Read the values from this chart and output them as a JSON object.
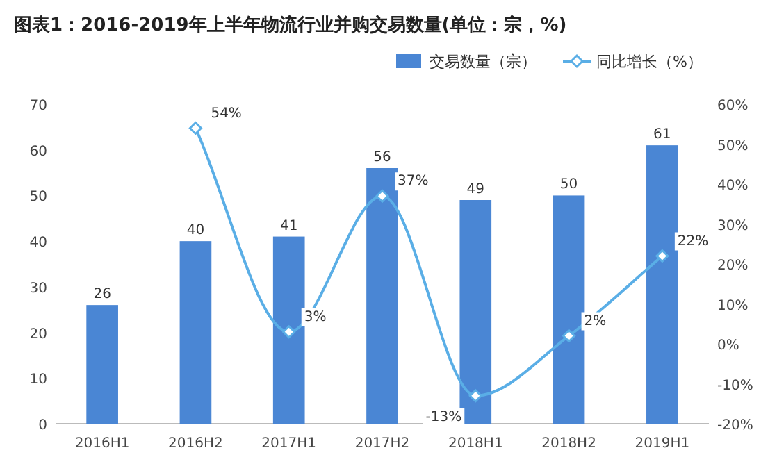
{
  "chart_data": {
    "type": "bar",
    "title": "图表1：2016-2019年上半年物流行业并购交易数量(单位：宗，%)",
    "categories": [
      "2016H1",
      "2016H2",
      "2017H1",
      "2017H2",
      "2018H1",
      "2018H2",
      "2019H1"
    ],
    "series": [
      {
        "name": "交易数量（宗）",
        "type": "bar",
        "color": "#4a86d4",
        "values": [
          26,
          40,
          41,
          56,
          49,
          50,
          61
        ],
        "value_labels": [
          "26",
          "40",
          "41",
          "56",
          "49",
          "50",
          "61"
        ]
      },
      {
        "name": "同比增长（%）",
        "type": "line",
        "axis": "y2",
        "marker": "diamond",
        "color": "#5aaee6",
        "values": [
          null,
          54,
          3,
          37,
          -13,
          2,
          22
        ],
        "value_labels": [
          null,
          "54%",
          "3%",
          "37%",
          "-13%",
          "2%",
          "22%"
        ]
      }
    ],
    "ylim": [
      0,
      70
    ],
    "yticks": [
      0,
      10,
      20,
      30,
      40,
      50,
      60,
      70
    ],
    "y2lim": [
      -20,
      60
    ],
    "y2ticks": [
      {
        "value": -20,
        "label": "-20%"
      },
      {
        "value": -10,
        "label": "-10%"
      },
      {
        "value": 0,
        "label": "0%"
      },
      {
        "value": 10,
        "label": "10%"
      },
      {
        "value": 20,
        "label": "20%"
      },
      {
        "value": 30,
        "label": "30%"
      },
      {
        "value": 40,
        "label": "40%"
      },
      {
        "value": 50,
        "label": "50%"
      },
      {
        "value": 60,
        "label": "60%"
      }
    ],
    "legend": "top right"
  }
}
